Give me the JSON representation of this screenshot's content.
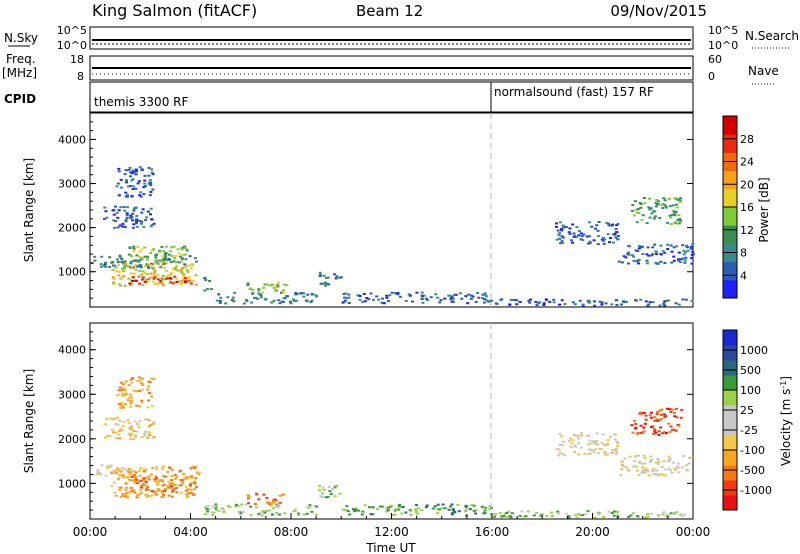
{
  "header": {
    "station": "King Salmon (fitACF)",
    "beam": "Beam 12",
    "date": "09/Nov/2015"
  },
  "control_panel": {
    "nsky_label": "N.Sky",
    "nsky_ticks": [
      "10^5",
      "10^0"
    ],
    "nsearch_label": "N.Search",
    "nsearch_ticks": [
      "10^5",
      "10^0"
    ],
    "freq_label": "Freq.",
    "freq_unit": "[MHz]",
    "freq_ticks": [
      "18",
      "8"
    ],
    "nave_label": "Nave",
    "nave_ticks": [
      "60",
      "0"
    ],
    "cpid_label": "CPID",
    "cpid_programs": [
      {
        "name": "themis 3300 RF",
        "start_hour": 0
      },
      {
        "name": "normalsound (fast) 157 RF",
        "start_hour": 16
      }
    ]
  },
  "chart_data": [
    {
      "type": "heatmap",
      "parameter": "power",
      "ylabel": "Slant Range [km]",
      "xlim": [
        0,
        24
      ],
      "ylim": [
        200,
        4600
      ],
      "yticks": [
        "1000",
        "2000",
        "3000",
        "4000"
      ],
      "colorbar_label": "Power [dB]",
      "colorbar_ticks": [
        "4",
        "8",
        "12",
        "16",
        "20",
        "24",
        "28"
      ],
      "colorbar_colors": [
        "#2020ff",
        "#2a5cb0",
        "#3a8a8a",
        "#3c8c50",
        "#7ccc3a",
        "#e8d02a",
        "#f4a21a",
        "#f06a10",
        "#e82a10",
        "#d40000"
      ],
      "echo_regions": [
        {
          "hours": [
            0.0,
            4.2
          ],
          "slant_range_km": [
            1100,
            1400
          ],
          "level": 2
        },
        {
          "hours": [
            0.8,
            4.3
          ],
          "slant_range_km": [
            700,
            1200
          ],
          "level": 5
        },
        {
          "hours": [
            1.5,
            4.0
          ],
          "slant_range_km": [
            750,
            950
          ],
          "level": 8
        },
        {
          "hours": [
            1.5,
            4.0
          ],
          "slant_range_km": [
            1200,
            1600
          ],
          "level": 4
        },
        {
          "hours": [
            0.5,
            2.5
          ],
          "slant_range_km": [
            2000,
            2500
          ],
          "level": 1
        },
        {
          "hours": [
            1.0,
            2.5
          ],
          "slant_range_km": [
            2700,
            3400
          ],
          "level": 1
        },
        {
          "hours": [
            4.5,
            4.8
          ],
          "slant_range_km": [
            550,
            900
          ],
          "level": 2
        },
        {
          "hours": [
            5.0,
            9.0
          ],
          "slant_range_km": [
            300,
            550
          ],
          "level": 2
        },
        {
          "hours": [
            6.2,
            7.8
          ],
          "slant_range_km": [
            550,
            800
          ],
          "level": 4
        },
        {
          "hours": [
            9.0,
            10.0
          ],
          "slant_range_km": [
            700,
            1000
          ],
          "level": 2
        },
        {
          "hours": [
            10.0,
            16.0
          ],
          "slant_range_km": [
            300,
            550
          ],
          "level": 1
        },
        {
          "hours": [
            16.0,
            24.0
          ],
          "slant_range_km": [
            250,
            400
          ],
          "level": 1
        },
        {
          "hours": [
            18.5,
            21.0
          ],
          "slant_range_km": [
            1650,
            2150
          ],
          "level": 1
        },
        {
          "hours": [
            21.0,
            24.0
          ],
          "slant_range_km": [
            1200,
            1650
          ],
          "level": 1
        },
        {
          "hours": [
            21.5,
            23.5
          ],
          "slant_range_km": [
            2100,
            2700
          ],
          "level": 3
        }
      ]
    },
    {
      "type": "heatmap",
      "parameter": "velocity",
      "ylabel": "Slant Range [km]",
      "xlabel": "Time UT",
      "xlim": [
        0,
        24
      ],
      "ylim": [
        200,
        4600
      ],
      "yticks": [
        "1000",
        "2000",
        "3000",
        "4000"
      ],
      "xticks": [
        "00:00",
        "04:00",
        "08:00",
        "12:00",
        "16:00",
        "20:00",
        "00:00"
      ],
      "colorbar_label": "Velocity [m s",
      "colorbar_label_sup": "-1",
      "colorbar_label_end": "]",
      "colorbar_ticks": [
        "-1000",
        "-500",
        "-100",
        "-25",
        "25",
        "100",
        "500",
        "1000"
      ],
      "colorbar_colors": [
        "#e81010",
        "#f03a10",
        "#f47a18",
        "#f8a820",
        "#f4c64a",
        "#c8c8c8",
        "#c8c8c8",
        "#9ad24a",
        "#3a9a3a",
        "#2a6a7a",
        "#2a4aa0",
        "#1a2ad0"
      ],
      "echo_regions": [
        {
          "hours": [
            0.0,
            1.5
          ],
          "slant_range_km": [
            1150,
            1450
          ],
          "level": 5
        },
        {
          "hours": [
            0.8,
            4.3
          ],
          "slant_range_km": [
            700,
            1400
          ],
          "level": 3
        },
        {
          "hours": [
            1.5,
            4.0
          ],
          "slant_range_km": [
            850,
            1200
          ],
          "level": 2
        },
        {
          "hours": [
            0.5,
            2.5
          ],
          "slant_range_km": [
            2000,
            2500
          ],
          "level": 4
        },
        {
          "hours": [
            1.0,
            2.5
          ],
          "slant_range_km": [
            2700,
            3400
          ],
          "level": 3
        },
        {
          "hours": [
            4.5,
            9.0
          ],
          "slant_range_km": [
            300,
            550
          ],
          "level": 7
        },
        {
          "hours": [
            6.2,
            7.8
          ],
          "slant_range_km": [
            550,
            800
          ],
          "level": 2
        },
        {
          "hours": [
            9.0,
            10.0
          ],
          "slant_range_km": [
            700,
            1000
          ],
          "level": 7
        },
        {
          "hours": [
            10.0,
            16.0
          ],
          "slant_range_km": [
            300,
            550
          ],
          "level": 8
        },
        {
          "hours": [
            16.0,
            24.0
          ],
          "slant_range_km": [
            250,
            400
          ],
          "level": 7
        },
        {
          "hours": [
            18.5,
            21.0
          ],
          "slant_range_km": [
            1650,
            2150
          ],
          "level": 5
        },
        {
          "hours": [
            21.0,
            24.0
          ],
          "slant_range_km": [
            1200,
            1650
          ],
          "level": 5
        },
        {
          "hours": [
            21.5,
            23.5
          ],
          "slant_range_km": [
            2100,
            2700
          ],
          "level": 1
        }
      ]
    }
  ]
}
